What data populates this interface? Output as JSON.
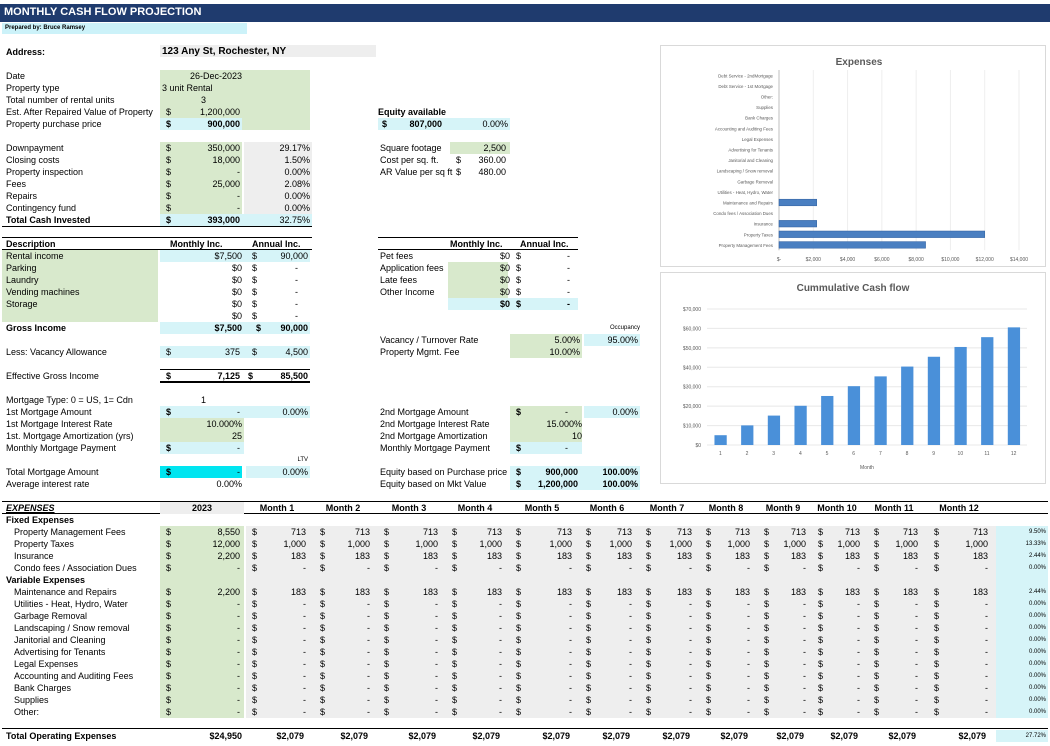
{
  "header": {
    "title": "MONTHLY CASH FLOW PROJECTION",
    "prepared": "Prepared by: Bruce Ramsey"
  },
  "property": {
    "address_label": "Address:",
    "address": "123 Any St, Rochester, NY",
    "rows": [
      {
        "label": "Date",
        "value": "26-Dec-2023"
      },
      {
        "label": "Property type",
        "value": "3 unit Rental"
      },
      {
        "label": "Total number of rental units",
        "value": "3"
      },
      {
        "label": "Est. After Repaired Value of Property",
        "cur": "$",
        "value": "1,200,000"
      },
      {
        "label": "Property purchase price",
        "cur": "$",
        "value": "900,000"
      }
    ]
  },
  "equity": {
    "label": "Equity available",
    "cur": "$",
    "value": "807,000",
    "pct": "0.00%"
  },
  "invest": {
    "rows": [
      {
        "label": "Downpayment",
        "cur": "$",
        "value": "350,000",
        "pct": "29.17%"
      },
      {
        "label": "Closing costs",
        "cur": "$",
        "value": "18,000",
        "pct": "1.50%"
      },
      {
        "label": "Property inspection",
        "cur": "$",
        "value": "-",
        "pct": "0.00%"
      },
      {
        "label": "Fees",
        "cur": "$",
        "value": "25,000",
        "pct": "2.08%"
      },
      {
        "label": "Repairs",
        "cur": "$",
        "value": "-",
        "pct": "0.00%"
      },
      {
        "label": "Contingency fund",
        "cur": "$",
        "value": "-",
        "pct": "0.00%"
      }
    ],
    "total_label": "Total Cash Invested",
    "total_cur": "$",
    "total": "393,000",
    "total_pct": "32.75%"
  },
  "sqft": {
    "rows": [
      {
        "label": "Square footage",
        "cur": "",
        "value": "2,500"
      },
      {
        "label": "Cost per sq. ft.",
        "cur": "$",
        "value": "360.00"
      },
      {
        "label": "AR Value per sq ft",
        "cur": "$",
        "value": "480.00"
      }
    ]
  },
  "income": {
    "desc_h": "Description",
    "monthly_h": "Monthly Inc.",
    "annual_h": "Annual Inc.",
    "rows": [
      {
        "label": "Rental income",
        "monthly": "$7,500",
        "annual": "90,000"
      },
      {
        "label": "Parking",
        "monthly": "$0",
        "annual": "-"
      },
      {
        "label": "Laundry",
        "monthly": "$0",
        "annual": "-"
      },
      {
        "label": "Vending machines",
        "monthly": "$0",
        "annual": "-"
      },
      {
        "label": "Storage",
        "monthly": "$0",
        "annual": "-"
      },
      {
        "label": "",
        "monthly": "$0",
        "annual": "-"
      }
    ],
    "gross_label": "Gross Income",
    "gross_m": "$7,500",
    "gross_a": "90,000",
    "vac_label": "Less: Vacancy Allowance",
    "vac_m": "375",
    "vac_a": "4,500",
    "eff_label": "Effective Gross Income",
    "eff_m": "7,125",
    "eff_a": "85,500"
  },
  "other_income": {
    "monthly_h": "Monthly Inc.",
    "annual_h": "Annual Inc.",
    "rows": [
      {
        "label": "Pet fees",
        "monthly": "$0",
        "annual": "-"
      },
      {
        "label": "Application fees",
        "monthly": "$0",
        "annual": "-"
      },
      {
        "label": "Late fees",
        "monthly": "$0",
        "annual": "-"
      },
      {
        "label": "Other Income",
        "monthly": "$0",
        "annual": "-"
      }
    ],
    "total_m": "$0",
    "total_a": "-"
  },
  "vacancy": {
    "occ_label": "Occupancy",
    "occ": "95.00%",
    "vac_label": "Vacancy / Turnover Rate",
    "vac": "5.00%",
    "mgmt_label": "Property Mgmt. Fee",
    "mgmt": "10.00%"
  },
  "mortgage1": {
    "rows": [
      {
        "label": "Mortgage Type: 0 = US, 1= Cdn",
        "value": "1",
        "pct": ""
      },
      {
        "label": "1st Mortgage Amount",
        "cur": "$",
        "value": "-",
        "pct": "0.00%"
      },
      {
        "label": "1st Mortgage Interest Rate",
        "value": "10.000%",
        "pct": ""
      },
      {
        "label": "1st. Mortgage Amortization (yrs)",
        "value": "25",
        "pct": ""
      },
      {
        "label": "Monthly Mortgage Payment",
        "cur": "$",
        "value": "-",
        "pct": ""
      }
    ],
    "ltv": "LTV",
    "total_label": "Total Mortgage Amount",
    "total_cur": "$",
    "total": "-",
    "total_pct": "0.00%",
    "avg_label": "Average interest rate",
    "avg": "0.00%"
  },
  "mortgage2": {
    "rows": [
      {
        "label": "2nd Mortgage Amount",
        "cur": "$",
        "value": "-",
        "pct": "0.00%"
      },
      {
        "label": "2nd Mortgage Interest Rate",
        "value": "15.000%"
      },
      {
        "label": "2nd Mortgage Amortization",
        "value": "10"
      },
      {
        "label": "Monthly Mortgage Payment",
        "cur": "$",
        "value": "-"
      }
    ],
    "eq1_label": "Equity based on Purchase price",
    "eq1": "900,000",
    "eq1_pct": "100.00%",
    "eq2_label": "Equity based on Mkt Value",
    "eq2": "1,200,000",
    "eq2_pct": "100.00%"
  },
  "expenses": {
    "header": "EXPENSES",
    "year": "2023",
    "months": [
      "Month 1",
      "Month 2",
      "Month 3",
      "Month 4",
      "Month 5",
      "Month 6",
      "Month 7",
      "Month 8",
      "Month 9",
      "Month 10",
      "Month 11",
      "Month 12"
    ],
    "fixed_label": "Fixed Expenses",
    "fixed": [
      {
        "label": "Property Management Fees",
        "year": "8,550",
        "m": "713",
        "pct": "9.50%"
      },
      {
        "label": "Property Taxes",
        "year": "12,000",
        "m": "1,000",
        "pct": "13.33%"
      },
      {
        "label": "Insurance",
        "year": "2,200",
        "m": "183",
        "pct": "2.44%"
      },
      {
        "label": "Condo fees / Association Dues",
        "year": "-",
        "m": "-",
        "pct": "0.00%"
      }
    ],
    "variable_label": "Variable Expenses",
    "variable": [
      {
        "label": "Maintenance and Repairs",
        "year": "2,200",
        "m": "183",
        "pct": "2.44%"
      },
      {
        "label": "Utilities - Heat, Hydro, Water",
        "year": "-",
        "m": "-",
        "pct": "0.00%"
      },
      {
        "label": "Garbage Removal",
        "year": "-",
        "m": "-",
        "pct": "0.00%"
      },
      {
        "label": "Landscaping / Snow removal",
        "year": "-",
        "m": "-",
        "pct": "0.00%"
      },
      {
        "label": "Janitorial and Cleaning",
        "year": "-",
        "m": "-",
        "pct": "0.00%"
      },
      {
        "label": "Advertising for Tenants",
        "year": "-",
        "m": "-",
        "pct": "0.00%"
      },
      {
        "label": "Legal Expenses",
        "year": "-",
        "m": "-",
        "pct": "0.00%"
      },
      {
        "label": "Accounting and Auditing Fees",
        "year": "-",
        "m": "-",
        "pct": "0.00%"
      },
      {
        "label": "Bank Charges",
        "year": "-",
        "m": "-",
        "pct": "0.00%"
      },
      {
        "label": "Supplies",
        "year": "-",
        "m": "-",
        "pct": "0.00%"
      },
      {
        "label": "Other:",
        "year": "-",
        "m": "-",
        "pct": "0.00%"
      }
    ],
    "total_label": "Total Operating Expenses",
    "total_year": "$24,950",
    "total_m": "$2,079",
    "total_pct": "27.72%"
  },
  "chart_data": [
    {
      "type": "bar",
      "orientation": "horizontal",
      "title": "Expenses",
      "categories": [
        "Debt Service - 2ndMortgage",
        "Debt Service - 1st Mortgage",
        "Other:",
        "Supplies",
        "Bank Charges",
        "Accounting and Auditing Fees",
        "Legal Expenses",
        "Advertising for Tenants",
        "Janitorial and Cleaning",
        "Landscaping / Snow removal",
        "Garbage Removal",
        "Utilities - Heat, Hydro, Water",
        "Maintenance and Repairs",
        "Condo fees / Association Dues",
        "Insurance",
        "Property Taxes",
        "Property Management Fees"
      ],
      "values": [
        0,
        0,
        0,
        0,
        0,
        0,
        0,
        0,
        0,
        0,
        0,
        0,
        2200,
        0,
        2200,
        12000,
        8550
      ],
      "xticks": [
        "$-",
        "$2,000",
        "$4,000",
        "$6,000",
        "$8,000",
        "$10,000",
        "$12,000",
        "$14,000"
      ],
      "xlim": [
        0,
        14000
      ],
      "color": "#4a7fc1"
    },
    {
      "type": "bar",
      "title": "Cummulative Cash flow",
      "xlabel": "Month",
      "categories": [
        "1",
        "2",
        "3",
        "4",
        "5",
        "6",
        "7",
        "8",
        "9",
        "10",
        "11",
        "12"
      ],
      "values": [
        5046,
        10092,
        15138,
        20184,
        25230,
        30276,
        35322,
        40368,
        45414,
        50460,
        55506,
        60552
      ],
      "yticks": [
        "$0",
        "$10,000",
        "$20,000",
        "$30,000",
        "$40,000",
        "$50,000",
        "$60,000",
        "$70,000"
      ],
      "ylim": [
        0,
        70000
      ],
      "color": "#4a90d9"
    }
  ]
}
